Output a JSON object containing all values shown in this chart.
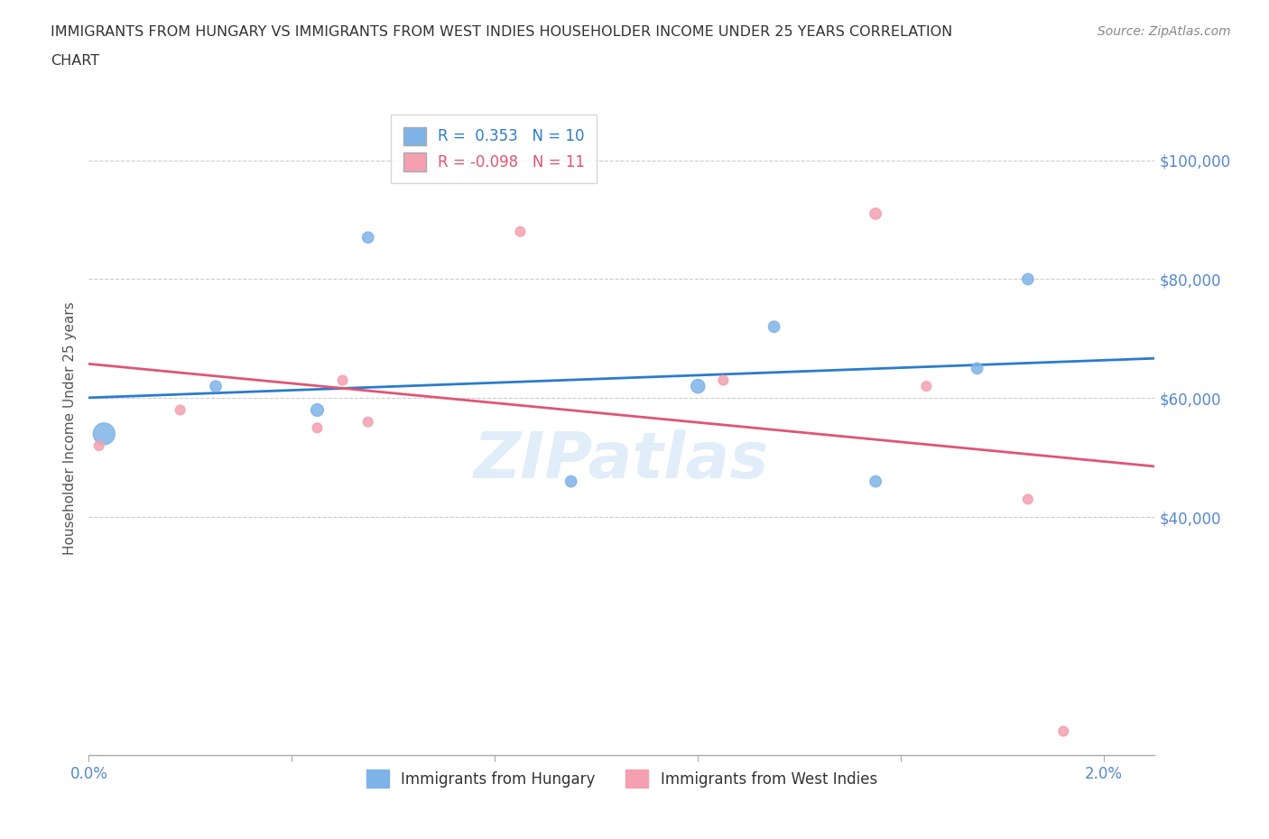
{
  "title_line1": "IMMIGRANTS FROM HUNGARY VS IMMIGRANTS FROM WEST INDIES HOUSEHOLDER INCOME UNDER 25 YEARS CORRELATION",
  "title_line2": "CHART",
  "source": "Source: ZipAtlas.com",
  "ylabel": "Householder Income Under 25 years",
  "xlim": [
    0.0,
    0.021
  ],
  "ylim": [
    0,
    110000
  ],
  "xticks": [
    0.0,
    0.004,
    0.008,
    0.012,
    0.016,
    0.02
  ],
  "xticklabels": [
    "0.0%",
    "",
    "",
    "",
    "",
    "2.0%"
  ],
  "ytick_labels": [
    "$40,000",
    "$60,000",
    "$80,000",
    "$100,000"
  ],
  "ytick_values": [
    40000,
    60000,
    80000,
    100000
  ],
  "hungary_color": "#7eb3e8",
  "west_indies_color": "#f4a0b0",
  "hungary_line_color": "#2b7bce",
  "west_indies_line_color": "#e05575",
  "r_hungary": 0.353,
  "n_hungary": 10,
  "r_west_indies": -0.098,
  "n_west_indies": 11,
  "hungary_x": [
    0.0003,
    0.0025,
    0.0045,
    0.0055,
    0.0095,
    0.012,
    0.0135,
    0.0155,
    0.0175,
    0.0185
  ],
  "hungary_y": [
    54000,
    62000,
    58000,
    87000,
    46000,
    62000,
    72000,
    46000,
    65000,
    80000
  ],
  "hungary_size": [
    300,
    80,
    100,
    80,
    80,
    120,
    80,
    80,
    80,
    80
  ],
  "west_indies_x": [
    0.0002,
    0.0018,
    0.0045,
    0.005,
    0.0055,
    0.0085,
    0.0125,
    0.0155,
    0.0165,
    0.0185,
    0.0192
  ],
  "west_indies_y": [
    52000,
    58000,
    55000,
    63000,
    56000,
    88000,
    63000,
    91000,
    62000,
    43000,
    4000
  ],
  "west_indies_size": [
    60,
    60,
    60,
    60,
    60,
    60,
    60,
    80,
    60,
    60,
    60
  ],
  "background_color": "#ffffff",
  "grid_color": "#cccccc",
  "title_color": "#333333",
  "axis_label_color": "#5588cc",
  "watermark": "ZIPatlas",
  "watermark_color": "#aaccee"
}
